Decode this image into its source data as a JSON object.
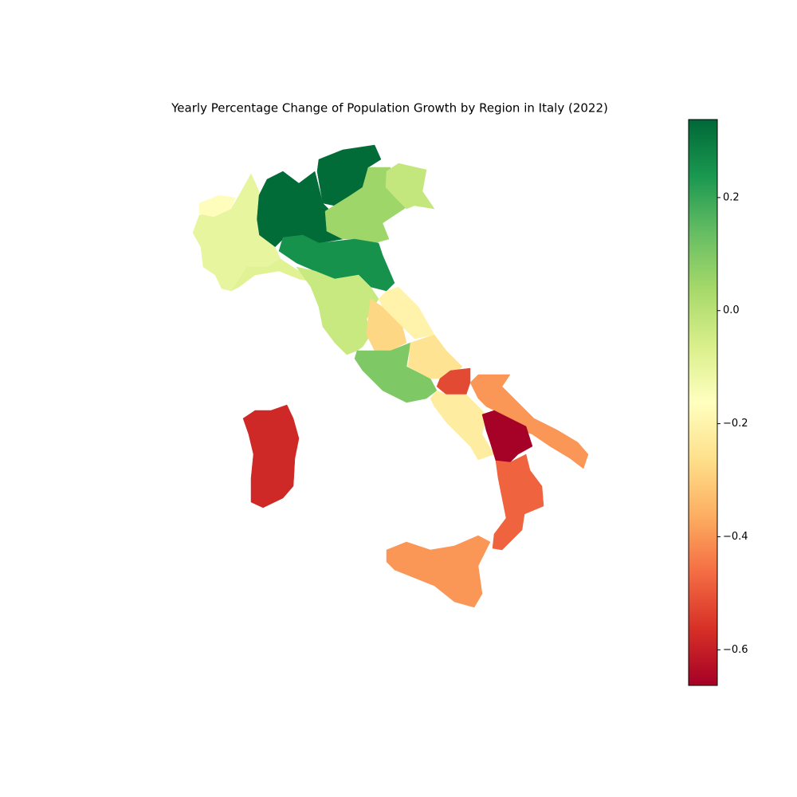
{
  "chart_data": {
    "type": "choropleth",
    "title": "Yearly Percentage Change of Population Growth by Region in Italy (2022)",
    "values": [
      0.33,
      0.33,
      0.05,
      -0.02,
      0.25,
      -0.1,
      -0.17,
      -0.08,
      -0.03,
      -0.28,
      -0.2,
      0.1,
      -0.25,
      -0.52,
      -0.22,
      -0.4,
      -0.66,
      -0.48,
      -0.4,
      -0.58
    ],
    "colormap": "RdYlGn",
    "clim": [
      -0.663,
      0.338
    ],
    "cticks": [
      {
        "value": -0.6,
        "label": "−0.6"
      },
      {
        "value": -0.4,
        "label": "−0.4"
      },
      {
        "value": -0.2,
        "label": "−0.2"
      },
      {
        "value": 0,
        "label": "0.0"
      },
      0.2
    ]
  }
}
